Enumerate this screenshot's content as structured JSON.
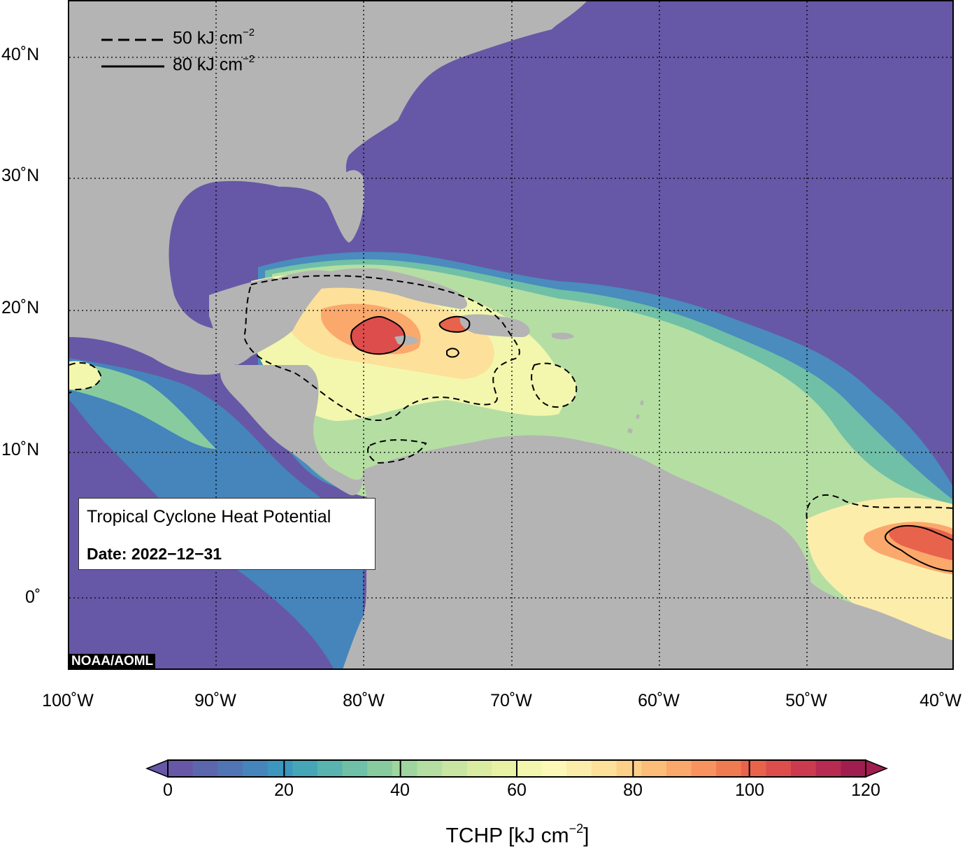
{
  "map": {
    "lat_labels": [
      "40˚N",
      "30˚N",
      "20˚N",
      "10˚N",
      "0˚"
    ],
    "lon_labels": [
      "100˚W",
      "90˚W",
      "80˚W",
      "70˚W",
      "60˚W",
      "50˚W",
      "40˚W"
    ],
    "ocean_color": "#6658a6",
    "land_color": "#b4b4b4"
  },
  "legend": {
    "dashed_label": "50 kJ cm",
    "solid_label": "80 kJ cm",
    "exponent": "−2"
  },
  "info_box": {
    "title": "Tropical Cyclone Heat Potential",
    "date": "Date: 2022−12−31"
  },
  "credit": "NOAA/AOML",
  "colorbar": {
    "ticks": [
      "0",
      "20",
      "40",
      "60",
      "80",
      "100",
      "120"
    ],
    "title_prefix": "TCHP [kJ cm",
    "title_exponent": "−2",
    "title_suffix": "]",
    "colors": [
      "#6658a6",
      "#5c66ad",
      "#5175b4",
      "#4585bb",
      "#3c96be",
      "#45a6b8",
      "#59b4b0",
      "#6fc0a6",
      "#88cb9f",
      "#9fd59e",
      "#b5dea3",
      "#c8e5a2",
      "#d9eca2",
      "#e7f2a4",
      "#f2f7ad",
      "#fbf8b8",
      "#fdedab",
      "#fde09a",
      "#fdd08a",
      "#fcbd79",
      "#fba86c",
      "#f8935f",
      "#f07a52",
      "#e8634b",
      "#dc4d4c",
      "#cb3a4f",
      "#b72a52",
      "#a01d4f"
    ]
  }
}
